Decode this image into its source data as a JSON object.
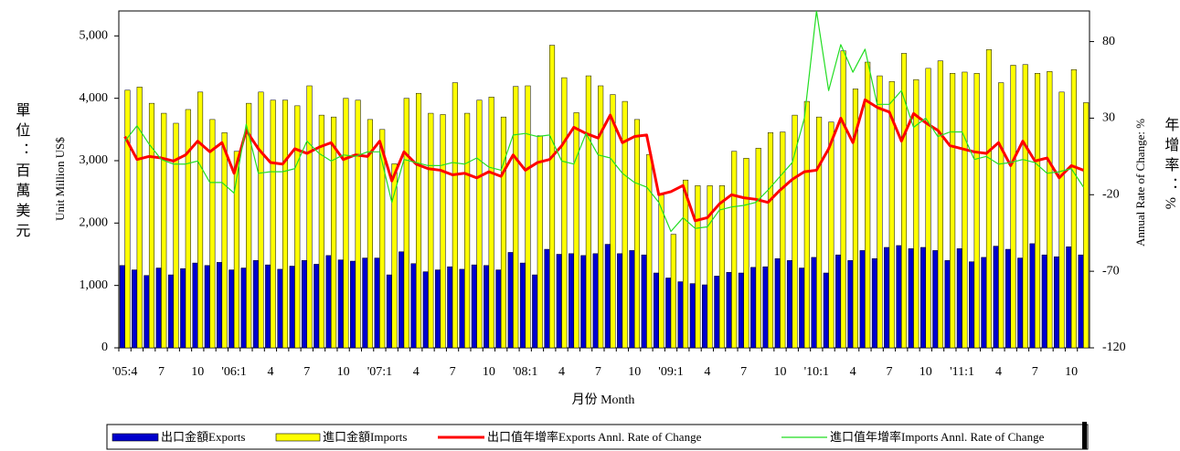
{
  "chart_data": {
    "type": "bar-line",
    "y_label": "Unit Million US$",
    "y2_label": "Annual Rate of Change: %",
    "x_label": "月份 Month",
    "left_unit": "單位：百萬美元",
    "right_unit": "年增率：%",
    "categories": [
      "'05:4",
      null,
      null,
      "7",
      null,
      null,
      "10",
      null,
      null,
      "'06:1",
      null,
      null,
      "4",
      null,
      null,
      "7",
      null,
      null,
      "10",
      null,
      null,
      "'07:1",
      null,
      null,
      "4",
      null,
      null,
      "7",
      null,
      null,
      "10",
      null,
      null,
      "'08:1",
      null,
      null,
      "4",
      null,
      null,
      "7",
      null,
      null,
      "10",
      null,
      null,
      "'09:1",
      null,
      null,
      "4",
      null,
      null,
      "7",
      null,
      null,
      "10",
      null,
      null,
      "'10:1",
      null,
      null,
      "4",
      null,
      null,
      "7",
      null,
      null,
      "10",
      null,
      null,
      "'11:1",
      null,
      null,
      "4",
      null,
      null,
      "7",
      null,
      null,
      "10",
      null
    ],
    "ylim": [
      0,
      5400
    ],
    "yticks": [
      0,
      {
        "value": 1000,
        "label": "1,000"
      },
      {
        "value": 2000,
        "label": "2,000"
      },
      {
        "value": 3000,
        "label": "3,000"
      },
      {
        "value": 4000,
        "label": "4,000"
      },
      {
        "value": 5000,
        "label": "5,000"
      }
    ],
    "y2lim": [
      -120,
      100
    ],
    "y2ticks": [
      -120,
      -70,
      -20,
      30,
      80
    ],
    "series": [
      {
        "name": "出口金額Exports",
        "kind": "bar",
        "color": "#0000cc",
        "values": [
          1320,
          1250,
          1160,
          1280,
          1170,
          1270,
          1360,
          1320,
          1370,
          1250,
          1280,
          1400,
          1330,
          1260,
          1310,
          1400,
          1340,
          1480,
          1410,
          1390,
          1440,
          1440,
          1170,
          1540,
          1350,
          1220,
          1250,
          1300,
          1260,
          1330,
          1320,
          1250,
          1530,
          1360,
          1170,
          1580,
          1500,
          1510,
          1480,
          1510,
          1660,
          1510,
          1560,
          1490,
          1200,
          1120,
          1060,
          1030,
          1010,
          1150,
          1210,
          1200,
          1290,
          1300,
          1430,
          1400,
          1280,
          1450,
          1200,
          1490,
          1400,
          1560,
          1430,
          1610,
          1640,
          1590,
          1610,
          1560,
          1400,
          1590,
          1380,
          1450,
          1630,
          1580,
          1440,
          1670,
          1490,
          1460,
          1620,
          1490
        ]
      },
      {
        "name": "進口金額Imports",
        "kind": "bar",
        "color": "#ffff00",
        "values": [
          4130,
          4180,
          3920,
          3760,
          3600,
          3820,
          4100,
          3660,
          3450,
          3150,
          3920,
          4100,
          3970,
          3970,
          3880,
          4200,
          3730,
          3700,
          4000,
          3970,
          3660,
          3500,
          2950,
          4000,
          4080,
          3760,
          3740,
          4250,
          3760,
          3970,
          4020,
          3700,
          4190,
          4200,
          3400,
          4850,
          4330,
          3770,
          4360,
          4200,
          4060,
          3950,
          3660,
          3100,
          2450,
          1820,
          2690,
          2600,
          2600,
          2600,
          3150,
          3040,
          3200,
          3450,
          3460,
          3730,
          3950,
          3700,
          3620,
          4760,
          4150,
          4580,
          4360,
          4270,
          4720,
          4300,
          4480,
          4600,
          4400,
          4420,
          4400,
          4780,
          4250,
          4530,
          4540,
          4400,
          4430,
          4100,
          4460,
          3930
        ]
      },
      {
        "name": "出口值年增率Exports Annl. Rate of Change",
        "kind": "line",
        "axis": "y2",
        "color": "#ff0000",
        "values": [
          18,
          3,
          5,
          4,
          2,
          6,
          15,
          8,
          14,
          -6,
          22,
          10,
          1,
          0,
          10,
          7,
          11,
          14,
          3,
          6,
          5,
          15,
          -11,
          8,
          0,
          -3,
          -4,
          -7,
          -6,
          -9,
          -5,
          -8,
          6,
          -4,
          1,
          3,
          12,
          24,
          20,
          17,
          32,
          14,
          18,
          19,
          -20,
          -18,
          -14,
          -37,
          -35,
          -26,
          -20,
          -22,
          -23,
          -25,
          -17,
          -10,
          -5,
          -4,
          10,
          30,
          14,
          42,
          37,
          34,
          15,
          33,
          27,
          22,
          12,
          10,
          8,
          7,
          14,
          -1,
          15,
          2,
          4,
          -9,
          -1,
          -4
        ]
      },
      {
        "name": "進口值年增率Imports Annl. Rate of Change",
        "kind": "line",
        "axis": "y2",
        "color": "#22dd22",
        "values": [
          15,
          25,
          13,
          3,
          0,
          0,
          2,
          -12,
          -12,
          -19,
          26,
          -6,
          -5,
          -5,
          -3,
          15,
          7,
          2,
          6,
          5,
          8,
          8,
          -25,
          3,
          1,
          -1,
          -1,
          1,
          0,
          4,
          -2,
          -4,
          19,
          20,
          18,
          19,
          2,
          0,
          20,
          6,
          4,
          -6,
          -12,
          -15,
          -25,
          -44,
          -35,
          -42,
          -41,
          -30,
          -28,
          -27,
          -25,
          -17,
          -8,
          1,
          30,
          100,
          48,
          78,
          60,
          75,
          39,
          39,
          48,
          24,
          30,
          18,
          21,
          21,
          3,
          5,
          0,
          1,
          3,
          1,
          -6,
          -5,
          -3,
          -15
        ]
      }
    ]
  }
}
